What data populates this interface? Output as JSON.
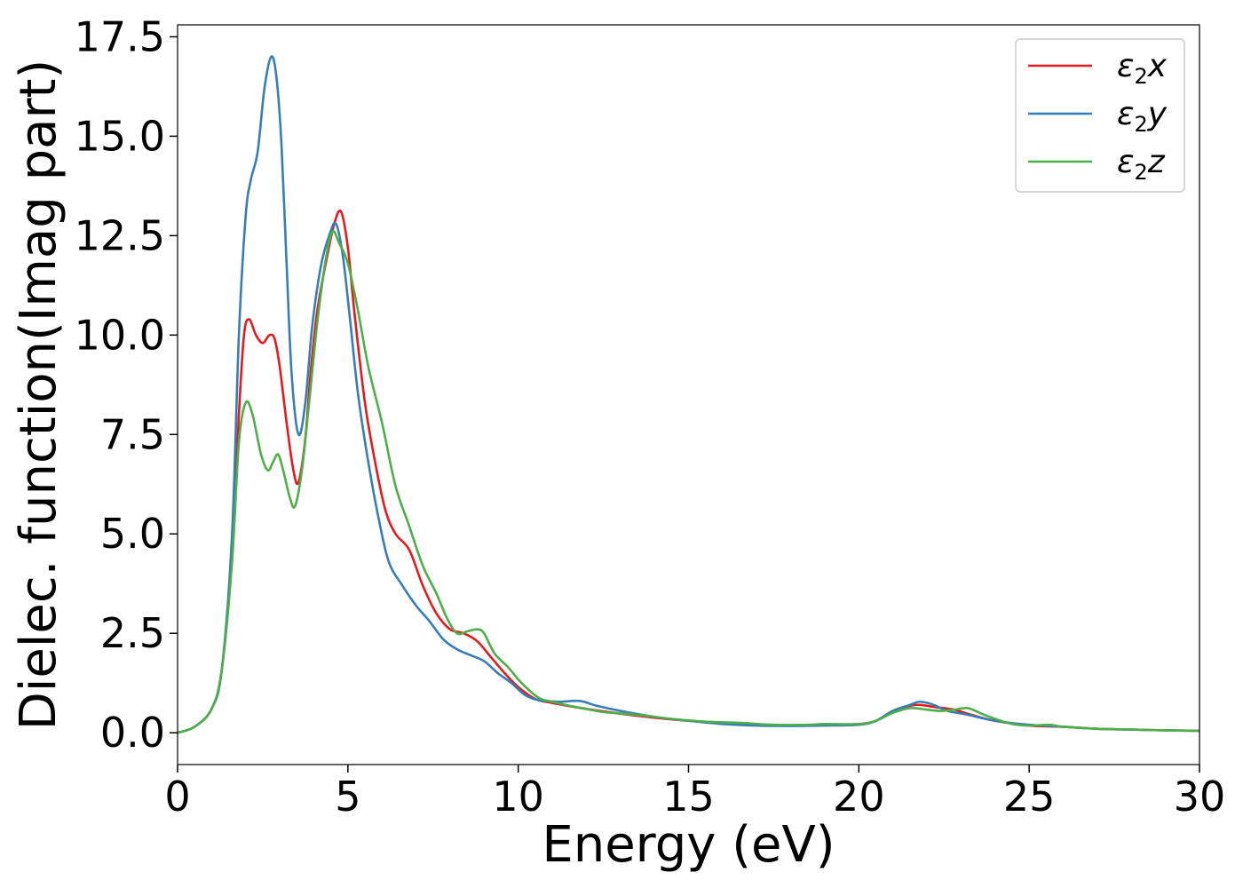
{
  "chart_data": {
    "type": "line",
    "title": "",
    "xlabel": "Energy (eV)",
    "ylabel": "Dielec. function(Imag part)",
    "xlim": [
      0,
      30
    ],
    "ylim": [
      -0.8,
      17.8
    ],
    "xticks": [
      0,
      5,
      10,
      15,
      20,
      25,
      30
    ],
    "xtick_labels": [
      "0",
      "5",
      "10",
      "15",
      "20",
      "25",
      "30"
    ],
    "yticks": [
      0.0,
      2.5,
      5.0,
      7.5,
      10.0,
      12.5,
      15.0,
      17.5
    ],
    "ytick_labels": [
      "0.0",
      "2.5",
      "5.0",
      "7.5",
      "10.0",
      "12.5",
      "15.0",
      "17.5"
    ],
    "grid": false,
    "legend_position": "top-right",
    "series": [
      {
        "name": "ε₂x",
        "legend_base": "ε",
        "legend_sub": "2",
        "legend_var": "x",
        "color": "#e41a1c",
        "points": [
          [
            0,
            0.0
          ],
          [
            0.5,
            0.15
          ],
          [
            1.0,
            0.6
          ],
          [
            1.3,
            1.6
          ],
          [
            1.6,
            4.5
          ],
          [
            1.8,
            8.0
          ],
          [
            1.95,
            10.0
          ],
          [
            2.1,
            10.4
          ],
          [
            2.3,
            10.0
          ],
          [
            2.5,
            9.8
          ],
          [
            2.7,
            10.0
          ],
          [
            2.85,
            9.9
          ],
          [
            3.0,
            9.2
          ],
          [
            3.2,
            7.8
          ],
          [
            3.4,
            6.6
          ],
          [
            3.55,
            6.3
          ],
          [
            3.75,
            7.4
          ],
          [
            3.9,
            9.0
          ],
          [
            4.1,
            10.6
          ],
          [
            4.35,
            11.8
          ],
          [
            4.6,
            12.8
          ],
          [
            4.8,
            13.1
          ],
          [
            5.0,
            12.2
          ],
          [
            5.2,
            10.5
          ],
          [
            5.5,
            8.3
          ],
          [
            5.8,
            6.8
          ],
          [
            6.1,
            5.6
          ],
          [
            6.4,
            5.0
          ],
          [
            6.8,
            4.6
          ],
          [
            7.2,
            3.7
          ],
          [
            7.6,
            3.0
          ],
          [
            8.0,
            2.6
          ],
          [
            8.4,
            2.5
          ],
          [
            8.8,
            2.3
          ],
          [
            9.2,
            1.9
          ],
          [
            9.6,
            1.5
          ],
          [
            10.0,
            1.15
          ],
          [
            10.5,
            0.85
          ],
          [
            11.0,
            0.75
          ],
          [
            12.0,
            0.6
          ],
          [
            13.0,
            0.48
          ],
          [
            14.0,
            0.38
          ],
          [
            15.0,
            0.3
          ],
          [
            16.0,
            0.25
          ],
          [
            17.0,
            0.2
          ],
          [
            18.0,
            0.18
          ],
          [
            19.0,
            0.2
          ],
          [
            20.0,
            0.22
          ],
          [
            20.5,
            0.3
          ],
          [
            21.0,
            0.55
          ],
          [
            21.5,
            0.68
          ],
          [
            21.8,
            0.7
          ],
          [
            22.2,
            0.65
          ],
          [
            22.8,
            0.58
          ],
          [
            23.3,
            0.45
          ],
          [
            24.0,
            0.3
          ],
          [
            25.0,
            0.18
          ],
          [
            26.0,
            0.15
          ],
          [
            27.0,
            0.1
          ],
          [
            28.0,
            0.08
          ],
          [
            29.0,
            0.06
          ],
          [
            30.0,
            0.05
          ]
        ]
      },
      {
        "name": "ε₂y",
        "legend_base": "ε",
        "legend_sub": "2",
        "legend_var": "y",
        "color": "#377eb8",
        "points": [
          [
            0,
            0.0
          ],
          [
            0.5,
            0.15
          ],
          [
            1.0,
            0.6
          ],
          [
            1.3,
            1.6
          ],
          [
            1.6,
            5.0
          ],
          [
            1.8,
            10.0
          ],
          [
            2.0,
            13.0
          ],
          [
            2.15,
            13.9
          ],
          [
            2.35,
            14.6
          ],
          [
            2.55,
            16.2
          ],
          [
            2.75,
            17.0
          ],
          [
            2.9,
            16.5
          ],
          [
            3.05,
            14.8
          ],
          [
            3.2,
            11.8
          ],
          [
            3.35,
            9.0
          ],
          [
            3.55,
            7.5
          ],
          [
            3.75,
            8.3
          ],
          [
            3.95,
            10.2
          ],
          [
            4.2,
            11.7
          ],
          [
            4.45,
            12.5
          ],
          [
            4.65,
            12.8
          ],
          [
            4.85,
            12.0
          ],
          [
            5.05,
            10.5
          ],
          [
            5.3,
            8.5
          ],
          [
            5.6,
            6.8
          ],
          [
            5.9,
            5.4
          ],
          [
            6.2,
            4.3
          ],
          [
            6.6,
            3.7
          ],
          [
            7.0,
            3.2
          ],
          [
            7.4,
            2.8
          ],
          [
            7.8,
            2.35
          ],
          [
            8.2,
            2.1
          ],
          [
            8.6,
            1.95
          ],
          [
            9.0,
            1.8
          ],
          [
            9.4,
            1.5
          ],
          [
            9.8,
            1.25
          ],
          [
            10.2,
            0.95
          ],
          [
            10.6,
            0.82
          ],
          [
            11.2,
            0.78
          ],
          [
            11.8,
            0.8
          ],
          [
            12.3,
            0.68
          ],
          [
            13.0,
            0.55
          ],
          [
            14.0,
            0.4
          ],
          [
            15.0,
            0.3
          ],
          [
            16.0,
            0.22
          ],
          [
            17.0,
            0.18
          ],
          [
            18.0,
            0.17
          ],
          [
            19.0,
            0.18
          ],
          [
            20.0,
            0.2
          ],
          [
            20.5,
            0.3
          ],
          [
            21.0,
            0.55
          ],
          [
            21.5,
            0.7
          ],
          [
            21.8,
            0.78
          ],
          [
            22.2,
            0.7
          ],
          [
            22.6,
            0.55
          ],
          [
            23.2,
            0.45
          ],
          [
            24.0,
            0.3
          ],
          [
            25.0,
            0.2
          ],
          [
            26.0,
            0.15
          ],
          [
            27.0,
            0.1
          ],
          [
            28.0,
            0.08
          ],
          [
            29.0,
            0.06
          ],
          [
            30.0,
            0.05
          ]
        ]
      },
      {
        "name": "ε₂z",
        "legend_base": "ε",
        "legend_sub": "2",
        "legend_var": "z",
        "color": "#4daf4a",
        "points": [
          [
            0,
            0.0
          ],
          [
            0.5,
            0.15
          ],
          [
            1.0,
            0.6
          ],
          [
            1.3,
            1.6
          ],
          [
            1.6,
            4.3
          ],
          [
            1.8,
            7.3
          ],
          [
            2.0,
            8.3
          ],
          [
            2.2,
            8.0
          ],
          [
            2.45,
            7.0
          ],
          [
            2.65,
            6.6
          ],
          [
            2.8,
            6.8
          ],
          [
            2.95,
            7.0
          ],
          [
            3.1,
            6.6
          ],
          [
            3.3,
            5.9
          ],
          [
            3.45,
            5.7
          ],
          [
            3.65,
            6.6
          ],
          [
            3.85,
            8.2
          ],
          [
            4.1,
            10.3
          ],
          [
            4.35,
            11.9
          ],
          [
            4.55,
            12.6
          ],
          [
            4.75,
            12.3
          ],
          [
            5.0,
            11.8
          ],
          [
            5.3,
            10.6
          ],
          [
            5.6,
            9.2
          ],
          [
            6.0,
            7.8
          ],
          [
            6.4,
            6.2
          ],
          [
            6.8,
            5.2
          ],
          [
            7.2,
            4.2
          ],
          [
            7.6,
            3.5
          ],
          [
            7.9,
            2.9
          ],
          [
            8.2,
            2.5
          ],
          [
            8.5,
            2.55
          ],
          [
            8.8,
            2.6
          ],
          [
            9.0,
            2.5
          ],
          [
            9.3,
            2.0
          ],
          [
            9.7,
            1.65
          ],
          [
            10.1,
            1.25
          ],
          [
            10.6,
            0.88
          ],
          [
            11.0,
            0.78
          ],
          [
            11.5,
            0.68
          ],
          [
            12.0,
            0.6
          ],
          [
            12.5,
            0.52
          ],
          [
            13.5,
            0.45
          ],
          [
            14.5,
            0.35
          ],
          [
            15.5,
            0.28
          ],
          [
            16.5,
            0.25
          ],
          [
            17.5,
            0.2
          ],
          [
            18.5,
            0.2
          ],
          [
            19.0,
            0.22
          ],
          [
            20.0,
            0.22
          ],
          [
            20.5,
            0.3
          ],
          [
            21.0,
            0.5
          ],
          [
            21.5,
            0.62
          ],
          [
            22.0,
            0.58
          ],
          [
            22.4,
            0.55
          ],
          [
            22.8,
            0.58
          ],
          [
            23.2,
            0.62
          ],
          [
            23.6,
            0.48
          ],
          [
            24.0,
            0.35
          ],
          [
            24.5,
            0.22
          ],
          [
            25.0,
            0.18
          ],
          [
            25.6,
            0.2
          ],
          [
            26.0,
            0.15
          ],
          [
            27.0,
            0.1
          ],
          [
            28.0,
            0.08
          ],
          [
            29.0,
            0.06
          ],
          [
            30.0,
            0.05
          ]
        ]
      }
    ]
  }
}
